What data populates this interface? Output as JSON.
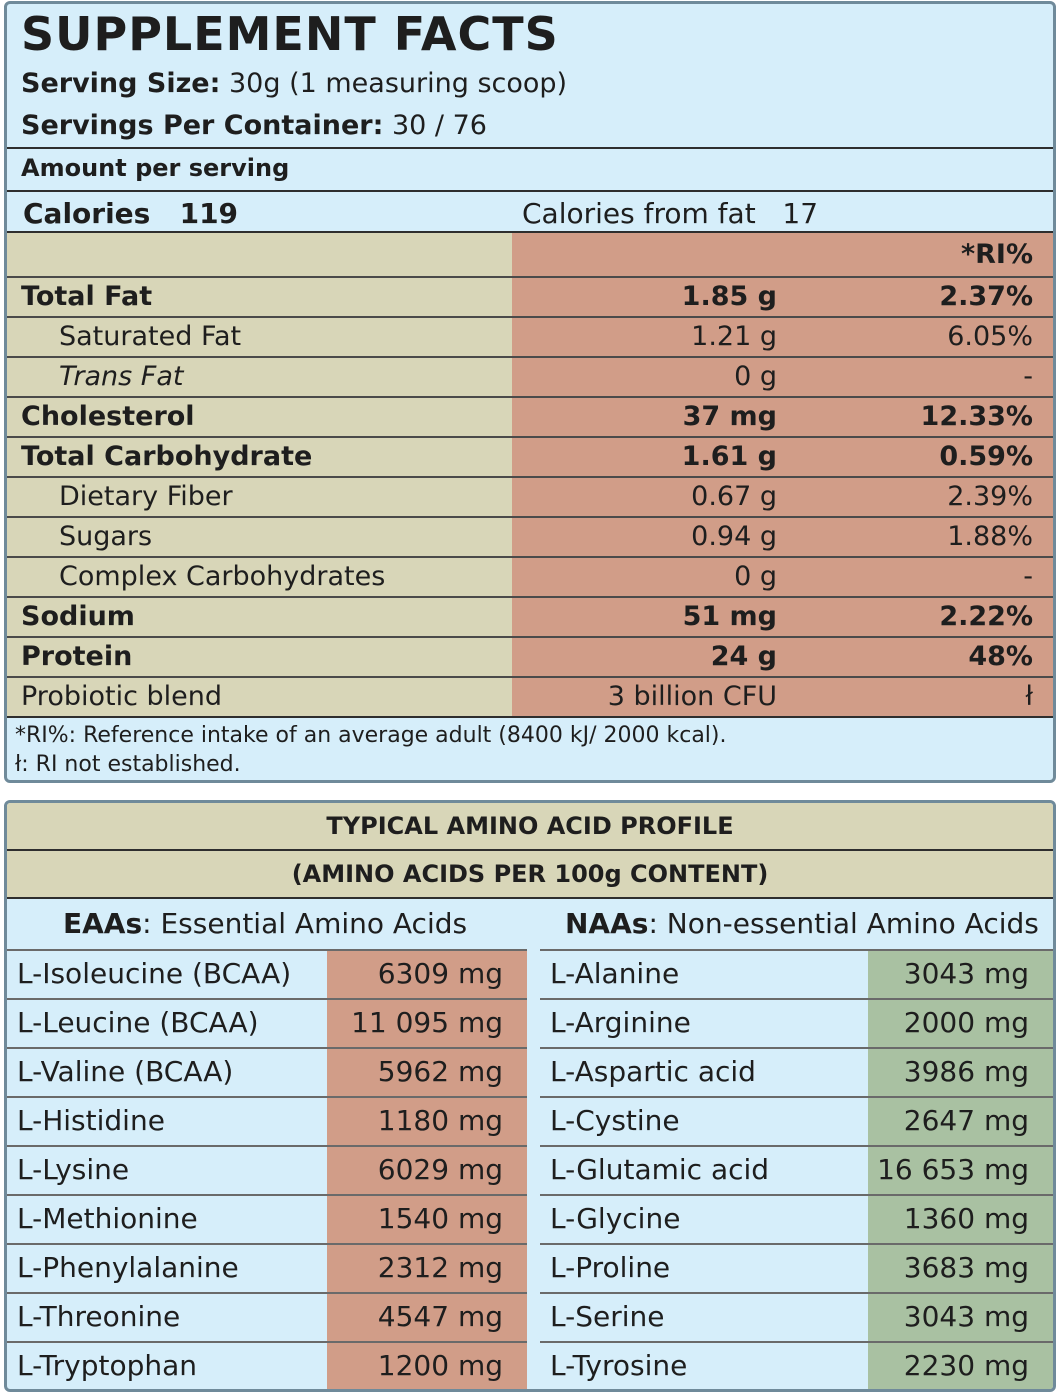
{
  "facts": {
    "title": "SUPPLEMENT FACTS",
    "serving_size_label": "Serving Size:",
    "serving_size_value": "30g (1 measuring scoop)",
    "servings_per_container_label": "Servings Per Container:",
    "servings_per_container_value": "30 / 76",
    "amount_per_serving": "Amount per serving",
    "calories_label": "Calories",
    "calories_value": "119",
    "calories_from_fat_label": "Calories from fat",
    "calories_from_fat_value": "17",
    "ri_header": "*RI%",
    "rows": [
      {
        "name": "Total Fat",
        "amount": "1.85 g",
        "ri": "2.37%"
      },
      {
        "name": "Saturated Fat",
        "amount": "1.21 g",
        "ri": "6.05%"
      },
      {
        "name": "Trans Fat",
        "amount": "0 g",
        "ri": "-"
      },
      {
        "name": "Cholesterol",
        "amount": "37 mg",
        "ri": "12.33%"
      },
      {
        "name": "Total Carbohydrate",
        "amount": "1.61 g",
        "ri": "0.59%"
      },
      {
        "name": "Dietary Fiber",
        "amount": "0.67 g",
        "ri": "2.39%"
      },
      {
        "name": "Sugars",
        "amount": "0.94 g",
        "ri": "1.88%"
      },
      {
        "name": "Complex Carbohydrates",
        "amount": "0 g",
        "ri": "-"
      },
      {
        "name": "Sodium",
        "amount": "51 mg",
        "ri": "2.22%"
      },
      {
        "name": "Protein",
        "amount": "24 g",
        "ri": "48%"
      },
      {
        "name": "Probiotic blend",
        "amount": "3 billion CFU",
        "ri": "ł"
      }
    ],
    "footnote_1": "*RI%: Reference intake of an average adult (8400 kJ/ 2000 kcal).",
    "footnote_2": "ł: RI not established."
  },
  "amino": {
    "title": "TYPICAL AMINO ACID PROFILE",
    "subtitle": "(AMINO ACIDS PER 100g CONTENT)",
    "eaa_abbr": "EAAs",
    "eaa_label": ": Essential Amino Acids",
    "naa_abbr": "NAAs",
    "naa_label": ": Non-essential Amino Acids",
    "eaa": [
      {
        "name": "L-Isoleucine (BCAA)",
        "value": "6309 mg"
      },
      {
        "name": "L-Leucine (BCAA)",
        "value": "11 095 mg"
      },
      {
        "name": "L-Valine (BCAA)",
        "value": "5962 mg"
      },
      {
        "name": "L-Histidine",
        "value": "1180 mg"
      },
      {
        "name": "L-Lysine",
        "value": "6029 mg"
      },
      {
        "name": "L-Methionine",
        "value": "1540 mg"
      },
      {
        "name": "L-Phenylalanine",
        "value": "2312 mg"
      },
      {
        "name": "L-Threonine",
        "value": "4547 mg"
      },
      {
        "name": "L-Tryptophan",
        "value": "1200 mg"
      }
    ],
    "naa": [
      {
        "name": "L-Alanine",
        "value": "3043 mg"
      },
      {
        "name": "L-Arginine",
        "value": "2000 mg"
      },
      {
        "name": "L-Aspartic acid",
        "value": "3986 mg"
      },
      {
        "name": "L-Cystine",
        "value": "2647 mg"
      },
      {
        "name": "L-Glutamic acid",
        "value": "16 653 mg"
      },
      {
        "name": "L-Glycine",
        "value": "1360 mg"
      },
      {
        "name": "L-Proline",
        "value": "3683 mg"
      },
      {
        "name": "L-Serine",
        "value": "3043 mg"
      },
      {
        "name": "L-Tyrosine",
        "value": "2230 mg"
      }
    ]
  }
}
